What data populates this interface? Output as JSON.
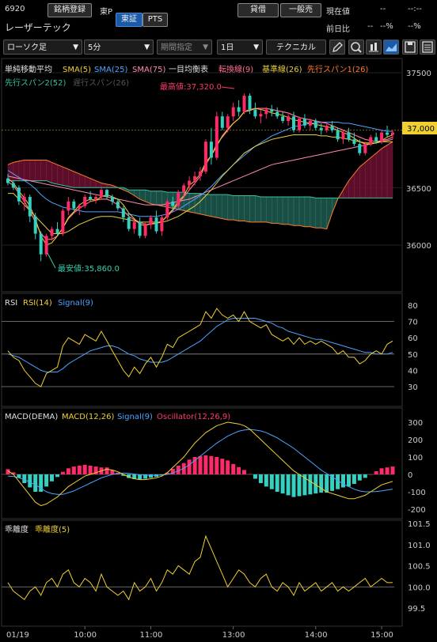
{
  "header": {
    "code": "6920",
    "name_btn": "銘柄登録",
    "market": "東P",
    "exch_tabs": [
      "東証",
      "PTS"
    ],
    "credit_btn": "貸借",
    "account_btn": "一般売",
    "current_label": "現在値",
    "current_value": "--",
    "time_value": "--:--",
    "name": "レーザーテック",
    "prev_ratio_label": "前日比",
    "prev_ratio_value": "--",
    "prev_ratio_pct": "--%",
    "pct2": "--%"
  },
  "toolbar": {
    "chart_type": "ローソク足",
    "interval": "5分",
    "period": "期間指定",
    "days": "1日",
    "technical": "テクニカル",
    "icons": [
      "pencil-icon",
      "zoom-icon",
      "compare-icon",
      "chart-style-icon",
      "save-icon",
      "menu-icon"
    ]
  },
  "main_legend": {
    "row1": [
      "単純移動平均",
      "SMA(5)",
      "SMA(25)",
      "SMA(75)",
      "一目均衡表",
      "転換線(9)",
      "基準線(26)",
      "先行スパン1(26)"
    ],
    "row2": [
      "先行スパン2(52)",
      "遅行スパン(26)"
    ],
    "colors": [
      "#e0e0e0",
      "#f0d030",
      "#4da3ff",
      "#ff8ab0",
      "#e0e0e0",
      "#ff6f8f",
      "#e8d040",
      "#ff7a2a",
      "#36c0a0",
      "#333333"
    ]
  },
  "main_axis": {
    "ticks": [
      "37500",
      "37000",
      "36500",
      "36000"
    ],
    "current": "37,000"
  },
  "annotations": {
    "high": "最高値:37,320.0",
    "low": "最安値:35,860.0"
  },
  "rsi_panel": {
    "legend": [
      "RSI",
      "RSI(14)",
      "Signal(9)"
    ],
    "ticks": [
      "80",
      "70",
      "60",
      "50",
      "40",
      "30"
    ]
  },
  "macd_panel": {
    "legend": [
      "MACD(DEMA)",
      "MACD(12,26)",
      "Signal(9)",
      "Oscillator(12,26,9)"
    ],
    "ticks": [
      "300",
      "200",
      "100",
      "0",
      "-100",
      "-200"
    ]
  },
  "dev_panel": {
    "legend": [
      "乖離度",
      "乖離度(5)"
    ],
    "ticks": [
      "101.5",
      "101.0",
      "100.5",
      "100.0",
      "99.5"
    ]
  },
  "x_axis": {
    "labels": [
      "01/19",
      "10:00",
      "11:00",
      "13:00",
      "14:00",
      "15:00"
    ]
  },
  "chart_data": {
    "type": "candlestick",
    "interval": "5分",
    "ylim": [
      35750,
      37650
    ],
    "candles": [
      [
        36580,
        36620,
        36520,
        36540
      ],
      [
        36540,
        36560,
        36480,
        36500
      ],
      [
        36500,
        36520,
        36350,
        36380
      ],
      [
        36380,
        36450,
        36300,
        36420
      ],
      [
        36420,
        36440,
        36200,
        36250
      ],
      [
        36250,
        36280,
        36050,
        36100
      ],
      [
        36100,
        36120,
        35860,
        35920
      ],
      [
        35920,
        36100,
        35900,
        36080
      ],
      [
        36080,
        36160,
        36040,
        36140
      ],
      [
        36140,
        36200,
        36080,
        36100
      ],
      [
        36100,
        36320,
        36080,
        36300
      ],
      [
        36300,
        36420,
        36260,
        36380
      ],
      [
        36380,
        36400,
        36300,
        36320
      ],
      [
        36320,
        36360,
        36260,
        36340
      ],
      [
        36340,
        36440,
        36320,
        36420
      ],
      [
        36420,
        36470,
        36380,
        36400
      ],
      [
        36400,
        36440,
        36360,
        36420
      ],
      [
        36420,
        36500,
        36400,
        36480
      ],
      [
        36480,
        36490,
        36400,
        36420
      ],
      [
        36420,
        36440,
        36350,
        36380
      ],
      [
        36380,
        36400,
        36300,
        36320
      ],
      [
        36320,
        36340,
        36200,
        36240
      ],
      [
        36240,
        36280,
        36120,
        36140
      ],
      [
        36140,
        36220,
        36100,
        36200
      ],
      [
        36200,
        36240,
        36060,
        36080
      ],
      [
        36080,
        36200,
        36060,
        36180
      ],
      [
        36180,
        36260,
        36140,
        36240
      ],
      [
        36240,
        36300,
        36100,
        36120
      ],
      [
        36120,
        36260,
        36080,
        36240
      ],
      [
        36240,
        36400,
        36220,
        36380
      ],
      [
        36380,
        36420,
        36300,
        36340
      ],
      [
        36340,
        36480,
        36320,
        36460
      ],
      [
        36460,
        36540,
        36420,
        36520
      ],
      [
        36520,
        36600,
        36480,
        36560
      ],
      [
        36560,
        36640,
        36520,
        36600
      ],
      [
        36600,
        36680,
        36560,
        36640
      ],
      [
        36640,
        36920,
        36620,
        36900
      ],
      [
        36900,
        37020,
        36700,
        36760
      ],
      [
        36760,
        37160,
        36740,
        37120
      ],
      [
        37120,
        37160,
        37000,
        37020
      ],
      [
        37020,
        37140,
        36980,
        37120
      ],
      [
        37120,
        37240,
        37080,
        37200
      ],
      [
        37200,
        37260,
        37120,
        37160
      ],
      [
        37160,
        37320,
        37140,
        37300
      ],
      [
        37300,
        37320,
        37140,
        37180
      ],
      [
        37180,
        37240,
        37100,
        37120
      ],
      [
        37120,
        37180,
        37060,
        37140
      ],
      [
        37140,
        37200,
        37100,
        37180
      ],
      [
        37180,
        37220,
        37120,
        37160
      ],
      [
        37160,
        37200,
        37100,
        37120
      ],
      [
        37120,
        37160,
        37060,
        37080
      ],
      [
        37080,
        37140,
        37040,
        37120
      ],
      [
        37120,
        37160,
        36980,
        37000
      ],
      [
        37000,
        37120,
        36980,
        37100
      ],
      [
        37100,
        37140,
        37020,
        37040
      ],
      [
        37040,
        37100,
        37000,
        37080
      ],
      [
        37080,
        37100,
        37000,
        37020
      ],
      [
        37020,
        37060,
        36960,
        37000
      ],
      [
        37000,
        37060,
        36980,
        37040
      ],
      [
        37040,
        37080,
        36980,
        37000
      ],
      [
        37000,
        37020,
        36900,
        36920
      ],
      [
        36920,
        37000,
        36880,
        36980
      ],
      [
        36980,
        37020,
        36900,
        36920
      ],
      [
        36920,
        36980,
        36860,
        36880
      ],
      [
        36880,
        36920,
        36780,
        36800
      ],
      [
        36800,
        36900,
        36780,
        36880
      ],
      [
        36880,
        36960,
        36860,
        36940
      ],
      [
        36940,
        36980,
        36880,
        36900
      ],
      [
        36900,
        37000,
        36880,
        36980
      ],
      [
        36980,
        37040,
        36940,
        36960
      ],
      [
        36960,
        37000,
        36920,
        36980
      ]
    ],
    "sma5": [
      36580,
      36540,
      36470,
      36410,
      36340,
      36230,
      36080,
      36000,
      36020,
      36080,
      36150,
      36240,
      36290,
      36350,
      36380,
      36400,
      36390,
      36420,
      36440,
      36420,
      36400,
      36350,
      36280,
      36230,
      36180,
      36170,
      36190,
      36190,
      36200,
      36260,
      36310,
      36380,
      36430,
      36520,
      36560,
      36620,
      36720,
      36780,
      36860,
      36950,
      37010,
      37060,
      37100,
      37160,
      37170,
      37190,
      37180,
      37170,
      37150,
      37140,
      37130,
      37110,
      37090,
      37080,
      37070,
      37060,
      37050,
      37040,
      37030,
      37020,
      37000,
      36980,
      36960,
      36930,
      36900,
      36880,
      36880,
      36890,
      36910,
      36940,
      36960
    ],
    "sma25": [
      36650,
      36620,
      36590,
      36560,
      36530,
      36490,
      36440,
      36400,
      36370,
      36350,
      36330,
      36320,
      36310,
      36300,
      36290,
      36290,
      36290,
      36290,
      36290,
      36290,
      36290,
      36280,
      36270,
      36260,
      36250,
      36250,
      36250,
      36250,
      36260,
      36270,
      36290,
      36310,
      36340,
      36370,
      36400,
      36430,
      36470,
      36510,
      36560,
      36610,
      36650,
      36700,
      36740,
      36780,
      36820,
      36860,
      36890,
      36920,
      36950,
      36970,
      36990,
      37010,
      37030,
      37040,
      37050,
      37060,
      37060,
      37070,
      37070,
      37070,
      37070,
      37060,
      37060,
      37050,
      37040,
      37030,
      37020,
      37010,
      37000,
      36990,
      36990
    ],
    "sma75": [
      36600,
      36590,
      36580,
      36570,
      36560,
      36550,
      36540,
      36530,
      36520,
      36510,
      36500,
      36490,
      36480,
      36470,
      36460,
      36450,
      36440,
      36430,
      36420,
      36410,
      36400,
      36390,
      36380,
      36370,
      36360,
      36350,
      36350,
      36350,
      36350,
      36360,
      36370,
      36380,
      36390,
      36400,
      36420,
      36440,
      36460,
      36480,
      36500,
      36520,
      36540,
      36560,
      36580,
      36600,
      36620,
      36640,
      36660,
      36680,
      36700,
      36710,
      36720,
      36730,
      36740,
      36750,
      36760,
      36770,
      36780,
      36790,
      36800,
      36810,
      36820,
      36830,
      36840,
      36850,
      36860,
      36870,
      36880,
      36890,
      36900,
      36910,
      36920
    ],
    "tenkan": [
      36550,
      36520,
      36450,
      36380,
      36300,
      36200,
      36100,
      36050,
      36050,
      36080,
      36150,
      36230,
      36280,
      36320,
      36350,
      36380,
      36390,
      36400,
      36400,
      36380,
      36350,
      36300,
      36250,
      36220,
      36200,
      36180,
      36180,
      36190,
      36210,
      36250,
      36300,
      36360,
      36420,
      36480,
      36540,
      36600,
      36700,
      36780,
      36880,
      36940,
      37000,
      37060,
      37100,
      37160,
      37180,
      37190,
      37190,
      37190,
      37180,
      37170,
      37160,
      37150,
      37130,
      37110,
      37100,
      37090,
      37080,
      37070,
      37060,
      37040,
      37020,
      37000,
      36980,
      36960,
      36940,
      36920,
      36910,
      36900,
      36910,
      36920,
      36940
    ],
    "kijun": [
      36450,
      36450,
      36400,
      36350,
      36300,
      36250,
      36200,
      36150,
      36100,
      36100,
      36100,
      36120,
      36150,
      36180,
      36200,
      36220,
      36240,
      36250,
      36250,
      36250,
      36240,
      36230,
      36220,
      36210,
      36200,
      36200,
      36200,
      36200,
      36200,
      36210,
      36230,
      36250,
      36280,
      36310,
      36340,
      36380,
      36430,
      36480,
      36540,
      36600,
      36650,
      36700,
      36750,
      36800,
      36830,
      36860,
      36880,
      36900,
      36920,
      36930,
      36940,
      36950,
      36960,
      36960,
      36960,
      36960,
      36960,
      36950,
      36950,
      36940,
      36940,
      36930,
      36920,
      36910,
      36900,
      36890,
      36890,
      36890,
      36900,
      36900,
      36900
    ],
    "span1": [
      36700,
      36720,
      36730,
      36740,
      36740,
      36740,
      36740,
      36740,
      36720,
      36700,
      36680,
      36660,
      36640,
      36620,
      36600,
      36580,
      36560,
      36540,
      36530,
      36520,
      36500,
      36480,
      36460,
      36430,
      36400,
      36380,
      36360,
      36350,
      36340,
      36330,
      36320,
      36310,
      36300,
      36290,
      36280,
      36270,
      36260,
      36250,
      36240,
      36230,
      36220,
      36220,
      36210,
      36210,
      36200,
      36200,
      36200,
      36200,
      36190,
      36190,
      36180,
      36180,
      36170,
      36170,
      36160,
      36160,
      36150,
      36150,
      36140,
      36280,
      36400,
      36480,
      36560,
      36620,
      36680,
      36720,
      36760,
      36800,
      36840,
      36870,
      36900
    ],
    "span2": [
      36560,
      36560,
      36560,
      36560,
      36560,
      36560,
      36560,
      36560,
      36540,
      36530,
      36520,
      36510,
      36500,
      36500,
      36500,
      36500,
      36500,
      36500,
      36500,
      36500,
      36500,
      36500,
      36480,
      36480,
      36480,
      36480,
      36470,
      36470,
      36470,
      36460,
      36460,
      36460,
      36460,
      36450,
      36450,
      36450,
      36440,
      36440,
      36440,
      36440,
      36440,
      36430,
      36430,
      36430,
      36430,
      36430,
      36420,
      36420,
      36420,
      36420,
      36420,
      36420,
      36420,
      36420,
      36420,
      36420,
      36410,
      36410,
      36410,
      36410,
      36410,
      36410,
      36410,
      36410,
      36410,
      36410,
      36410,
      36410,
      36410,
      36410,
      36410
    ],
    "rsi": [
      52,
      48,
      46,
      40,
      36,
      32,
      30,
      38,
      40,
      42,
      55,
      60,
      58,
      56,
      62,
      60,
      58,
      64,
      58,
      52,
      46,
      40,
      36,
      42,
      38,
      44,
      48,
      42,
      48,
      56,
      54,
      60,
      62,
      64,
      66,
      68,
      76,
      72,
      78,
      74,
      72,
      74,
      70,
      76,
      70,
      68,
      66,
      68,
      62,
      60,
      58,
      60,
      56,
      60,
      56,
      58,
      56,
      58,
      56,
      54,
      50,
      52,
      48,
      48,
      44,
      46,
      50,
      52,
      50,
      56,
      58
    ],
    "rsi_signal": [
      50,
      49,
      48,
      46,
      44,
      42,
      40,
      39,
      39,
      39,
      41,
      44,
      46,
      48,
      50,
      52,
      53,
      54,
      55,
      55,
      54,
      52,
      50,
      49,
      47,
      46,
      45,
      45,
      45,
      46,
      48,
      50,
      52,
      54,
      56,
      58,
      61,
      64,
      67,
      69,
      71,
      72,
      72,
      72,
      72,
      72,
      71,
      70,
      69,
      67,
      66,
      64,
      63,
      62,
      61,
      60,
      59,
      59,
      58,
      57,
      56,
      55,
      54,
      53,
      52,
      51,
      51,
      50,
      50,
      50,
      51
    ],
    "macd": [
      20,
      0,
      -40,
      -80,
      -120,
      -160,
      -180,
      -170,
      -150,
      -130,
      -100,
      -70,
      -50,
      -30,
      -10,
      0,
      10,
      20,
      30,
      25,
      15,
      0,
      -15,
      -25,
      -30,
      -30,
      -25,
      -20,
      -10,
      10,
      40,
      70,
      100,
      140,
      180,
      210,
      240,
      260,
      280,
      290,
      300,
      295,
      290,
      280,
      260,
      230,
      200,
      170,
      140,
      110,
      80,
      50,
      20,
      0,
      -20,
      -40,
      -60,
      -80,
      -100,
      -110,
      -120,
      -130,
      -140,
      -140,
      -130,
      -120,
      -100,
      -80,
      -60,
      -50,
      -40
    ],
    "macd_signal": [
      -10,
      -12,
      -20,
      -30,
      -45,
      -60,
      -80,
      -100,
      -110,
      -115,
      -115,
      -105,
      -95,
      -80,
      -65,
      -50,
      -35,
      -20,
      -10,
      0,
      5,
      8,
      6,
      2,
      -2,
      -5,
      -6,
      -6,
      -4,
      0,
      8,
      20,
      35,
      55,
      80,
      105,
      130,
      155,
      180,
      200,
      220,
      235,
      248,
      255,
      258,
      255,
      250,
      240,
      225,
      210,
      190,
      170,
      150,
      125,
      100,
      75,
      50,
      25,
      5,
      -15,
      -35,
      -55,
      -70,
      -85,
      -95,
      -100,
      -100,
      -98,
      -95,
      -90,
      -85
    ],
    "oscillator": [
      30,
      12,
      -20,
      -50,
      -75,
      -100,
      -100,
      -70,
      -40,
      -15,
      15,
      35,
      45,
      50,
      55,
      50,
      45,
      40,
      40,
      25,
      10,
      -8,
      -21,
      -27,
      -28,
      -25,
      -19,
      -14,
      -6,
      10,
      32,
      50,
      65,
      85,
      100,
      105,
      110,
      105,
      100,
      90,
      80,
      60,
      42,
      25,
      2,
      -25,
      -50,
      -70,
      -85,
      -100,
      -110,
      -120,
      -130,
      -125,
      -120,
      -115,
      -110,
      -105,
      -105,
      -95,
      -85,
      -75,
      -70,
      -55,
      -35,
      -20,
      0,
      18,
      35,
      40,
      45
    ],
    "deviation": [
      100.1,
      99.9,
      99.8,
      99.7,
      99.9,
      100.0,
      99.8,
      100.1,
      100.2,
      100.0,
      100.3,
      100.4,
      100.1,
      100.0,
      100.2,
      100.1,
      99.9,
      100.3,
      100.0,
      99.9,
      99.8,
      99.9,
      99.7,
      100.1,
      99.9,
      100.0,
      100.2,
      99.9,
      100.1,
      100.4,
      100.3,
      100.5,
      100.4,
      100.3,
      100.6,
      100.7,
      101.2,
      100.9,
      100.6,
      100.3,
      100.0,
      100.2,
      100.4,
      100.3,
      100.1,
      100.0,
      100.2,
      100.3,
      100.0,
      99.9,
      100.1,
      100.0,
      99.8,
      100.1,
      99.9,
      100.0,
      100.1,
      99.9,
      100.0,
      100.1,
      99.9,
      100.0,
      99.9,
      100.0,
      100.1,
      100.2,
      100.0,
      100.1,
      100.2,
      100.1,
      100.1
    ]
  }
}
